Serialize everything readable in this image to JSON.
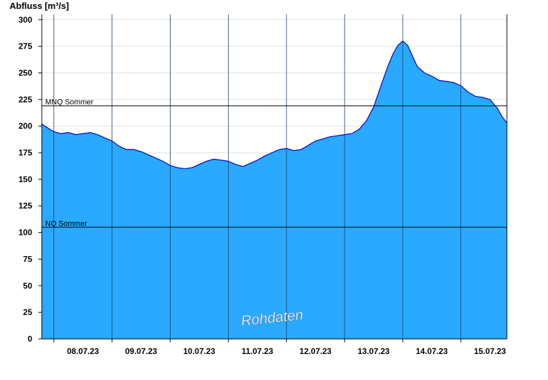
{
  "chart_data": {
    "type": "area",
    "ylabel": "Abfluss [m³/s]",
    "ylim": [
      0,
      305
    ],
    "yticks": [
      0,
      25,
      50,
      75,
      100,
      125,
      150,
      175,
      200,
      225,
      250,
      275,
      300
    ],
    "xlim": [
      "07.07.23 19:00",
      "15.07.23 19:00"
    ],
    "xticks": [
      "08.07.23",
      "09.07.23",
      "10.07.23",
      "11.07.23",
      "12.07.23",
      "13.07.23",
      "14.07.23",
      "15.07.23"
    ],
    "grid": true,
    "watermark": "Rohdaten",
    "colors": {
      "fill": "#29a9ff",
      "line": "#0000cc",
      "grid": "#cfcfcf",
      "ref": "#000000"
    },
    "reference_lines": [
      {
        "label": "MNQ Sommer",
        "value": 219
      },
      {
        "label": "NQ Sommer",
        "value": 105
      }
    ],
    "series": [
      {
        "x": [
          "07.07.23 19:00",
          "07.07.23 21:00",
          "07.07.23 23:00",
          "08.07.23 01:00",
          "08.07.23 03:00",
          "08.07.23 06:00",
          "08.07.23 09:00",
          "08.07.23 12:00",
          "08.07.23 15:00",
          "08.07.23 18:00",
          "08.07.23 21:00",
          "09.07.23 00:00",
          "09.07.23 03:00",
          "09.07.23 06:00",
          "09.07.23 09:00",
          "09.07.23 12:00",
          "09.07.23 15:00",
          "09.07.23 18:00",
          "09.07.23 21:00",
          "10.07.23 00:00",
          "10.07.23 03:00",
          "10.07.23 06:00",
          "10.07.23 09:00",
          "10.07.23 12:00",
          "10.07.23 15:00",
          "10.07.23 18:00",
          "10.07.23 21:00",
          "11.07.23 00:00",
          "11.07.23 03:00",
          "11.07.23 06:00",
          "11.07.23 09:00",
          "11.07.23 12:00",
          "11.07.23 15:00",
          "11.07.23 18:00",
          "11.07.23 21:00",
          "12.07.23 00:00",
          "12.07.23 03:00",
          "12.07.23 06:00",
          "12.07.23 09:00",
          "12.07.23 12:00",
          "12.07.23 15:00",
          "12.07.23 18:00",
          "12.07.23 21:00",
          "13.07.23 00:00",
          "13.07.23 03:00",
          "13.07.23 06:00",
          "13.07.23 09:00",
          "13.07.23 12:00",
          "13.07.23 15:00",
          "13.07.23 18:00",
          "13.07.23 20:00",
          "13.07.23 22:00",
          "14.07.23 00:00",
          "14.07.23 02:00",
          "14.07.23 04:00",
          "14.07.23 06:00",
          "14.07.23 09:00",
          "14.07.23 12:00",
          "14.07.23 15:00",
          "14.07.23 18:00",
          "14.07.23 21:00",
          "15.07.23 00:00",
          "15.07.23 03:00",
          "15.07.23 06:00",
          "15.07.23 09:00",
          "15.07.23 12:00",
          "15.07.23 15:00",
          "15.07.23 17:00",
          "15.07.23 19:00"
        ],
        "values": [
          202,
          199,
          196,
          194,
          193,
          194,
          192,
          193,
          194,
          192,
          189,
          186,
          181,
          178,
          178,
          176,
          173,
          170,
          167,
          163,
          161,
          160,
          161,
          164,
          167,
          169,
          168,
          167,
          164,
          162,
          165,
          168,
          172,
          175,
          178,
          179,
          177,
          178,
          182,
          186,
          188,
          190,
          191,
          192,
          193,
          197,
          205,
          218,
          238,
          257,
          268,
          276,
          280,
          276,
          266,
          256,
          250,
          247,
          243,
          242,
          241,
          238,
          232,
          228,
          227,
          225,
          217,
          209,
          203
        ]
      }
    ]
  }
}
